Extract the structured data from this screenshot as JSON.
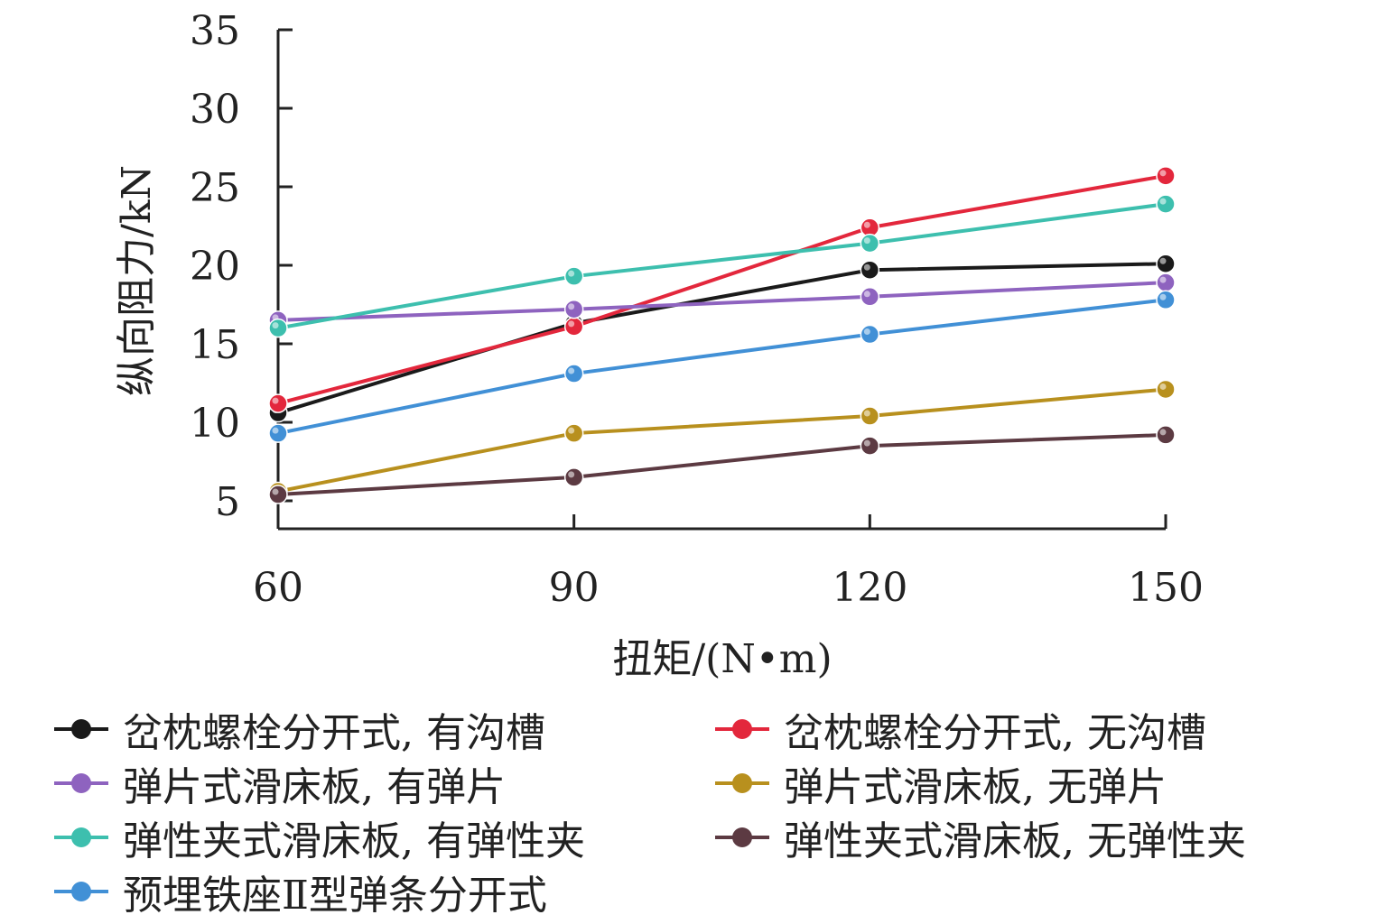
{
  "chart_data": {
    "type": "line",
    "xlabel": "扭矩/(N•m)",
    "ylabel": "纵向阻力/kN",
    "x": [
      60,
      90,
      120,
      150
    ],
    "xticks": [
      "60",
      "90",
      "120",
      "150"
    ],
    "yticks": [
      "5",
      "10",
      "15",
      "20",
      "25",
      "30",
      "35"
    ],
    "ylim": [
      3,
      35
    ],
    "grid": false,
    "legend_position": "bottom",
    "series": [
      {
        "name": "岔枕螺栓分开式, 有沟槽",
        "color": "#1a1a1a",
        "values": [
          10.6,
          16.3,
          19.7,
          20.1
        ]
      },
      {
        "name": "岔枕螺栓分开式, 无沟槽",
        "color": "#e3273c",
        "values": [
          11.2,
          16.1,
          22.4,
          25.7
        ]
      },
      {
        "name": "弹片式滑床板, 有弹片",
        "color": "#8e63bf",
        "values": [
          16.5,
          17.2,
          18.0,
          18.9
        ]
      },
      {
        "name": "弹片式滑床板, 无弹片",
        "color": "#b8901e",
        "values": [
          5.6,
          9.3,
          10.4,
          12.1
        ]
      },
      {
        "name": "弹性夹式滑床板, 有弹性夹",
        "color": "#3dbfae",
        "values": [
          16.0,
          19.3,
          21.4,
          23.9
        ]
      },
      {
        "name": "弹性夹式滑床板, 无弹性夹",
        "color": "#5c3a42",
        "values": [
          5.4,
          6.5,
          8.5,
          9.2
        ]
      },
      {
        "name": "预埋铁座Ⅱ型弹条分开式",
        "color": "#4190d6",
        "values": [
          9.3,
          13.1,
          15.6,
          17.8
        ]
      }
    ]
  }
}
